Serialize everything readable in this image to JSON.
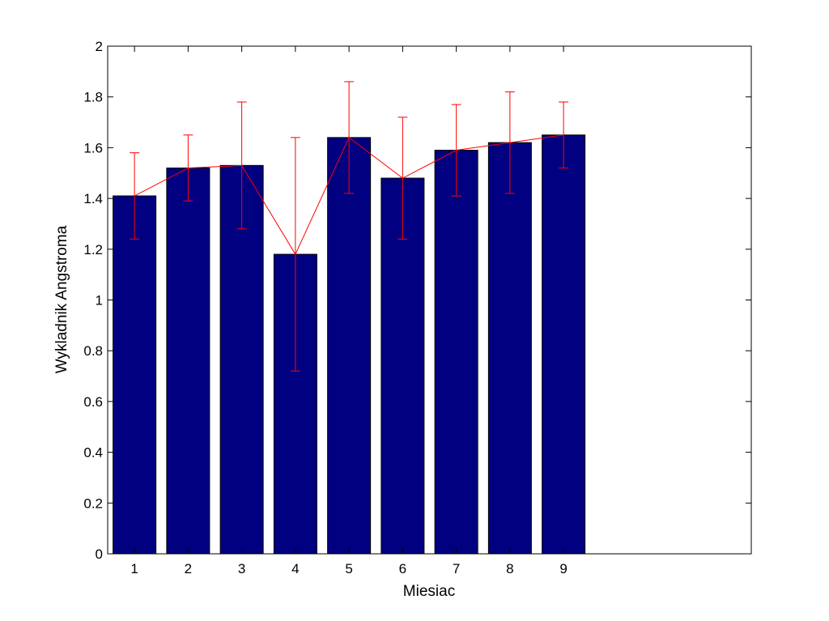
{
  "chart_data": {
    "type": "bar",
    "categories": [
      "1",
      "2",
      "3",
      "4",
      "5",
      "6",
      "7",
      "8",
      "9"
    ],
    "series": [
      {
        "values": [
          1.41,
          1.52,
          1.53,
          1.18,
          1.64,
          1.48,
          1.59,
          1.62,
          1.65
        ],
        "error_upper": [
          1.58,
          1.65,
          1.78,
          1.64,
          1.86,
          1.72,
          1.77,
          1.82,
          1.78
        ],
        "error_lower": [
          1.24,
          1.39,
          1.28,
          0.72,
          1.42,
          1.24,
          1.41,
          1.42,
          1.52
        ],
        "bar_color": "#000080",
        "line_color": "#ff0000"
      }
    ],
    "xlabel": "Miesiac",
    "ylabel": "Wykladnik Angstroma",
    "xlim": [
      0.5,
      12.5
    ],
    "ylim": [
      0,
      2
    ],
    "yticks": [
      0,
      0.2,
      0.4,
      0.6,
      0.8,
      1,
      1.2,
      1.4,
      1.6,
      1.8,
      2
    ],
    "ytick_labels": [
      "0",
      "0.2",
      "0.4",
      "0.6",
      "0.8",
      "1",
      "1.2",
      "1.4",
      "1.6",
      "1.8",
      "2"
    ],
    "grid": false,
    "legend": "none"
  }
}
